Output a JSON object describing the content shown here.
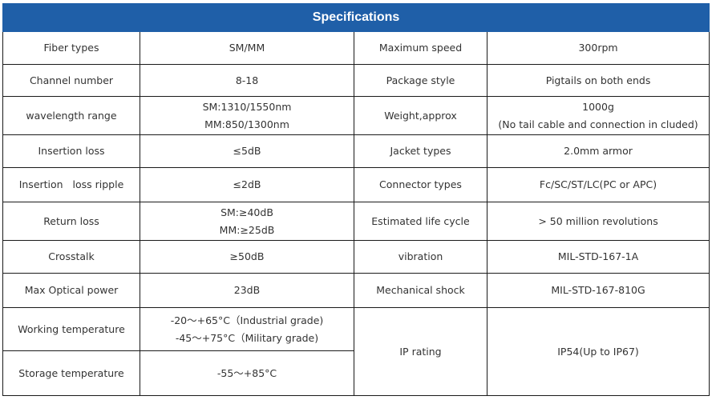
{
  "title": "Specifications",
  "rows": [
    {
      "l1": "Fiber types",
      "v1": [
        "SM/MM"
      ],
      "l2": "Maximum speed",
      "v2": [
        "300rpm"
      ]
    },
    {
      "l1": "Channel number",
      "v1": [
        "8-18"
      ],
      "l2": "Package style",
      "v2": [
        "Pigtails on both ends"
      ]
    },
    {
      "l1": "wavelength range",
      "v1": [
        "SM:1310/1550nm",
        "MM:850/1300nm"
      ],
      "l2": "Weight,approx",
      "v2": [
        "1000g",
        "(No tail cable and connection in cluded)"
      ]
    },
    {
      "l1": "Insertion loss",
      "v1": [
        "≤5dB"
      ],
      "l2": "Jacket types",
      "v2": [
        "2.0mm armor"
      ]
    },
    {
      "l1": "Insertion   loss ripple",
      "v1": [
        "≤2dB"
      ],
      "l2": "Connector types",
      "v2": [
        "Fc/SC/ST/LC(PC or APC)"
      ]
    },
    {
      "l1": "Return loss",
      "v1": [
        "SM:≥40dB",
        "MM:≥25dB"
      ],
      "l2": "Estimated life cycle",
      "v2": [
        "> 50 million revolutions"
      ]
    },
    {
      "l1": "Crosstalk",
      "v1": [
        "≥50dB"
      ],
      "l2": "vibration",
      "v2": [
        "MIL-STD-167-1A"
      ]
    },
    {
      "l1": "Max Optical power",
      "v1": [
        "23dB"
      ],
      "l2": "Mechanical shock",
      "v2": [
        "MIL-STD-167-810G"
      ]
    },
    {
      "l1": "Working temperature",
      "v1": [
        "-20～+65°C（Industrial grade)",
        "-45～+75°C（Military grade)"
      ]
    },
    {
      "l1": "Storage temperature",
      "v1": [
        "-55～+85°C"
      ]
    }
  ],
  "merged": {
    "l2": "IP rating",
    "v2": "IP54(Up to IP67)"
  }
}
